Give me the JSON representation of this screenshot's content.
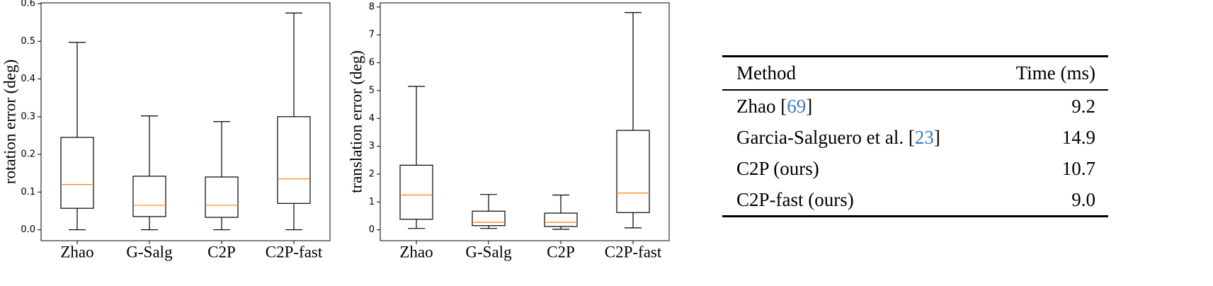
{
  "chart_data": [
    {
      "type": "box",
      "ylabel": "rotation error (deg)",
      "categories": [
        "Zhao",
        "G-Salg",
        "C2P",
        "C2P-fast"
      ],
      "boxes": [
        {
          "whislo": 0.0,
          "q1": 0.057,
          "med": 0.12,
          "q3": 0.245,
          "whishi": 0.497
        },
        {
          "whislo": 0.0,
          "q1": 0.035,
          "med": 0.065,
          "q3": 0.142,
          "whishi": 0.302
        },
        {
          "whislo": 0.0,
          "q1": 0.033,
          "med": 0.065,
          "q3": 0.14,
          "whishi": 0.287
        },
        {
          "whislo": 0.0,
          "q1": 0.07,
          "med": 0.135,
          "q3": 0.3,
          "whishi": 0.575
        }
      ],
      "median_color": "#ff7f0e",
      "ylim": [
        -0.029,
        0.602
      ],
      "yticks": [
        {
          "value": 0,
          "label": "0.0"
        },
        0.1,
        0.2,
        0.3,
        0.4,
        0.5,
        0.6
      ]
    },
    {
      "type": "box",
      "ylabel": "translation error (deg)",
      "categories": [
        "Zhao",
        "G-Salg",
        "C2P",
        "C2P-fast"
      ],
      "boxes": [
        {
          "whislo": 0.05,
          "q1": 0.38,
          "med": 1.25,
          "q3": 2.32,
          "whishi": 5.15
        },
        {
          "whislo": 0.05,
          "q1": 0.15,
          "med": 0.27,
          "q3": 0.67,
          "whishi": 1.27
        },
        {
          "whislo": 0.02,
          "q1": 0.12,
          "med": 0.27,
          "q3": 0.6,
          "whishi": 1.25
        },
        {
          "whislo": 0.07,
          "q1": 0.62,
          "med": 1.32,
          "q3": 3.57,
          "whishi": 7.8
        }
      ],
      "median_color": "#ff7f0e",
      "ylim": [
        -0.39,
        8.15
      ],
      "yticks": [
        0,
        1,
        2,
        3,
        4,
        5,
        6,
        7,
        8
      ]
    }
  ],
  "table": {
    "header": [
      "Method",
      "Time (ms)"
    ],
    "rows": [
      {
        "method": [
          "Zhao [",
          "69",
          "]"
        ],
        "time": "9.2"
      },
      {
        "method": [
          "Garcia-Salguero et al. [",
          "23",
          "]"
        ],
        "time": "14.9"
      },
      {
        "method": [
          "C2P (ours)"
        ],
        "time": "10.7"
      },
      {
        "method": [
          "C2P-fast (ours)"
        ],
        "time": "9.0"
      }
    ],
    "cite_color": "#3a7bbf"
  }
}
